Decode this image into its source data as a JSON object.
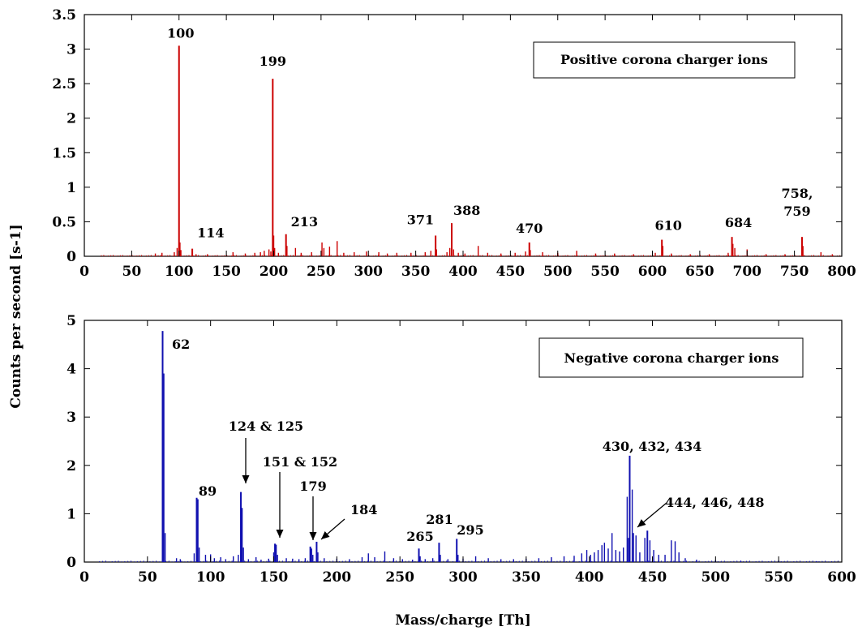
{
  "figure": {
    "ylabel": "Counts per second [s-1]",
    "xlabel": "Mass/charge [Th]"
  },
  "chart_data": [
    {
      "type": "bar",
      "legend": "Positive corona charger ions",
      "color": "#cc0000",
      "xlim": [
        0,
        800
      ],
      "ylim": [
        0,
        3.5
      ],
      "xticks": [
        "0",
        "50",
        "100",
        "150",
        "200",
        "250",
        "300",
        "350",
        "400",
        "450",
        "500",
        "550",
        "600",
        "650",
        "700",
        "750",
        "800"
      ],
      "yticks": [
        "0",
        "0.5",
        "1",
        "1.5",
        "2",
        "2.5",
        "3",
        "3.5"
      ],
      "peaks": [
        {
          "x": 100,
          "y": 3.05,
          "label": "100"
        },
        {
          "x": 114,
          "y": 0.11,
          "label": "114"
        },
        {
          "x": 199,
          "y": 2.57,
          "label": "199"
        },
        {
          "x": 213,
          "y": 0.32,
          "label": "213"
        },
        {
          "x": 371,
          "y": 0.3,
          "label": "371"
        },
        {
          "x": 388,
          "y": 0.48,
          "label": "388"
        },
        {
          "x": 470,
          "y": 0.2,
          "label": "470"
        },
        {
          "x": 610,
          "y": 0.24,
          "label": "610"
        },
        {
          "x": 684,
          "y": 0.28,
          "label": "684"
        },
        {
          "x": 758,
          "y": 0.28,
          "label": "758,"
        }
      ],
      "extra_labels": [
        "759"
      ],
      "minor": [
        [
          75,
          0.04
        ],
        [
          82,
          0.05
        ],
        [
          95,
          0.06
        ],
        [
          98,
          0.12
        ],
        [
          101,
          0.2
        ],
        [
          102,
          0.09
        ],
        [
          118,
          0.03
        ],
        [
          130,
          0.03
        ],
        [
          157,
          0.06
        ],
        [
          170,
          0.04
        ],
        [
          180,
          0.05
        ],
        [
          186,
          0.06
        ],
        [
          190,
          0.08
        ],
        [
          195,
          0.1
        ],
        [
          197,
          0.07
        ],
        [
          200,
          0.3
        ],
        [
          201,
          0.12
        ],
        [
          205,
          0.05
        ],
        [
          214,
          0.15
        ],
        [
          223,
          0.12
        ],
        [
          229,
          0.05
        ],
        [
          240,
          0.06
        ],
        [
          251,
          0.2
        ],
        [
          253,
          0.12
        ],
        [
          259,
          0.14
        ],
        [
          267,
          0.22
        ],
        [
          274,
          0.05
        ],
        [
          285,
          0.06
        ],
        [
          298,
          0.07
        ],
        [
          311,
          0.06
        ],
        [
          320,
          0.04
        ],
        [
          330,
          0.05
        ],
        [
          345,
          0.05
        ],
        [
          360,
          0.06
        ],
        [
          366,
          0.08
        ],
        [
          372,
          0.1
        ],
        [
          383,
          0.06
        ],
        [
          386,
          0.12
        ],
        [
          390,
          0.1
        ],
        [
          395,
          0.05
        ],
        [
          402,
          0.04
        ],
        [
          416,
          0.15
        ],
        [
          426,
          0.05
        ],
        [
          440,
          0.04
        ],
        [
          455,
          0.05
        ],
        [
          466,
          0.07
        ],
        [
          471,
          0.09
        ],
        [
          484,
          0.06
        ],
        [
          500,
          0.05
        ],
        [
          520,
          0.08
        ],
        [
          540,
          0.04
        ],
        [
          560,
          0.04
        ],
        [
          580,
          0.03
        ],
        [
          603,
          0.05
        ],
        [
          611,
          0.15
        ],
        [
          620,
          0.04
        ],
        [
          640,
          0.03
        ],
        [
          660,
          0.03
        ],
        [
          680,
          0.05
        ],
        [
          685,
          0.18
        ],
        [
          687,
          0.12
        ],
        [
          700,
          0.1
        ],
        [
          720,
          0.03
        ],
        [
          740,
          0.03
        ],
        [
          759,
          0.15
        ],
        [
          778,
          0.06
        ],
        [
          790,
          0.03
        ]
      ]
    },
    {
      "type": "bar",
      "legend": "Negative corona charger ions",
      "color": "#1010b0",
      "xlim": [
        0,
        600
      ],
      "ylim": [
        0,
        5
      ],
      "xticks": [
        "0",
        "50",
        "100",
        "150",
        "200",
        "250",
        "300",
        "350",
        "400",
        "450",
        "500",
        "550",
        "600"
      ],
      "yticks": [
        "0",
        "1",
        "2",
        "3",
        "4",
        "5"
      ],
      "peaks": [
        {
          "x": 62,
          "y": 4.78,
          "label": "62"
        },
        {
          "x": 89,
          "y": 1.33,
          "label": "89"
        },
        {
          "x": 124,
          "y": 1.45,
          "label": "124 & 125"
        },
        {
          "x": 151,
          "y": 0.38,
          "label": "151 & 152"
        },
        {
          "x": 179,
          "y": 0.32,
          "label": "179"
        },
        {
          "x": 184,
          "y": 0.42,
          "label": "184"
        },
        {
          "x": 265,
          "y": 0.28,
          "label": "265"
        },
        {
          "x": 281,
          "y": 0.4,
          "label": "281"
        },
        {
          "x": 295,
          "y": 0.48,
          "label": "295"
        },
        {
          "x": 432,
          "y": 2.2,
          "label": "430, 432, 434"
        },
        {
          "x": 446,
          "y": 0.65,
          "label": "444, 446, 448"
        }
      ],
      "minor": [
        [
          63,
          3.9
        ],
        [
          64,
          0.6
        ],
        [
          73,
          0.08
        ],
        [
          76,
          0.06
        ],
        [
          87,
          0.18
        ],
        [
          90,
          1.3
        ],
        [
          91,
          0.3
        ],
        [
          96,
          0.15
        ],
        [
          100,
          0.16
        ],
        [
          103,
          0.08
        ],
        [
          108,
          0.1
        ],
        [
          112,
          0.06
        ],
        [
          118,
          0.12
        ],
        [
          122,
          0.15
        ],
        [
          125,
          1.12
        ],
        [
          126,
          0.3
        ],
        [
          130,
          0.06
        ],
        [
          136,
          0.1
        ],
        [
          140,
          0.05
        ],
        [
          146,
          0.07
        ],
        [
          150,
          0.2
        ],
        [
          152,
          0.36
        ],
        [
          153,
          0.15
        ],
        [
          160,
          0.08
        ],
        [
          165,
          0.07
        ],
        [
          170,
          0.06
        ],
        [
          175,
          0.08
        ],
        [
          180,
          0.28
        ],
        [
          181,
          0.15
        ],
        [
          185,
          0.2
        ],
        [
          190,
          0.08
        ],
        [
          200,
          0.07
        ],
        [
          210,
          0.06
        ],
        [
          220,
          0.1
        ],
        [
          225,
          0.18
        ],
        [
          230,
          0.1
        ],
        [
          238,
          0.22
        ],
        [
          245,
          0.08
        ],
        [
          252,
          0.06
        ],
        [
          260,
          0.05
        ],
        [
          266,
          0.12
        ],
        [
          270,
          0.06
        ],
        [
          276,
          0.08
        ],
        [
          282,
          0.15
        ],
        [
          288,
          0.06
        ],
        [
          296,
          0.15
        ],
        [
          300,
          0.07
        ],
        [
          310,
          0.12
        ],
        [
          320,
          0.08
        ],
        [
          330,
          0.06
        ],
        [
          340,
          0.06
        ],
        [
          350,
          0.07
        ],
        [
          360,
          0.08
        ],
        [
          370,
          0.1
        ],
        [
          380,
          0.12
        ],
        [
          388,
          0.13
        ],
        [
          394,
          0.18
        ],
        [
          398,
          0.25
        ],
        [
          401,
          0.15
        ],
        [
          404,
          0.2
        ],
        [
          407,
          0.25
        ],
        [
          410,
          0.35
        ],
        [
          412,
          0.4
        ],
        [
          415,
          0.28
        ],
        [
          418,
          0.6
        ],
        [
          421,
          0.25
        ],
        [
          424,
          0.22
        ],
        [
          427,
          0.3
        ],
        [
          430,
          1.35
        ],
        [
          431,
          0.5
        ],
        [
          434,
          1.5
        ],
        [
          435,
          0.6
        ],
        [
          437,
          0.55
        ],
        [
          440,
          0.2
        ],
        [
          444,
          0.5
        ],
        [
          448,
          0.45
        ],
        [
          451,
          0.25
        ],
        [
          455,
          0.15
        ],
        [
          460,
          0.15
        ],
        [
          465,
          0.45
        ],
        [
          468,
          0.43
        ],
        [
          471,
          0.2
        ],
        [
          476,
          0.08
        ],
        [
          485,
          0.05
        ],
        [
          500,
          0.04
        ],
        [
          520,
          0.03
        ],
        [
          550,
          0.03
        ],
        [
          580,
          0.02
        ]
      ]
    }
  ]
}
